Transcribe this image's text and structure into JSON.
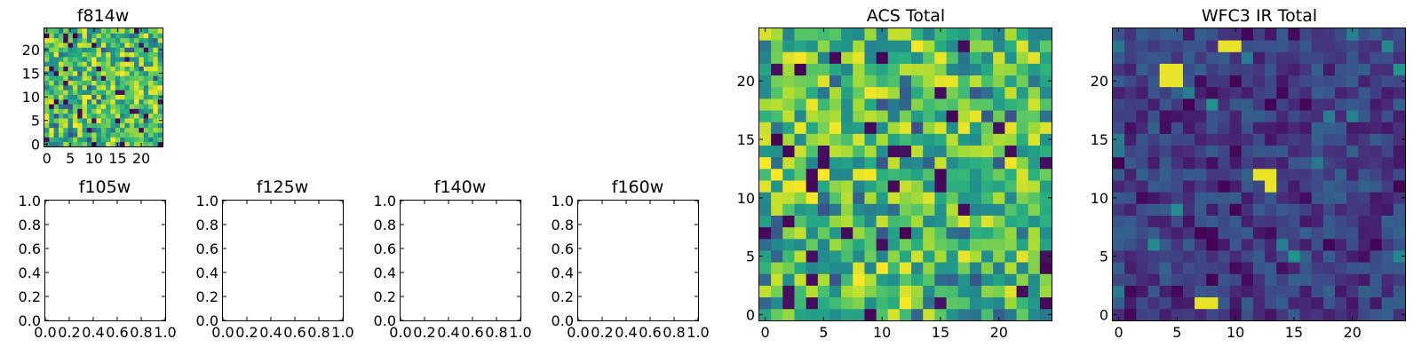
{
  "chart_data": [
    {
      "type": "heatmap",
      "title": "f814w",
      "xticks": [
        "0",
        "5",
        "10",
        "15",
        "20"
      ],
      "yticks": [
        "0",
        "5",
        "10",
        "15",
        "20"
      ],
      "xlim": [
        -0.5,
        24.5
      ],
      "ylim": [
        -0.5,
        24.5
      ],
      "grid_size": 25,
      "colormap": "viridis",
      "seed": 11,
      "value_range": [
        0,
        1
      ]
    },
    {
      "type": "heatmap",
      "title": "f105w",
      "empty": true,
      "xticks": [
        "0.0",
        "0.2",
        "0.4",
        "0.6",
        "0.8",
        "1.0"
      ],
      "yticks": [
        "0.0",
        "0.2",
        "0.4",
        "0.6",
        "0.8",
        "1.0"
      ],
      "xlim": [
        0,
        1
      ],
      "ylim": [
        0,
        1
      ]
    },
    {
      "type": "heatmap",
      "title": "f125w",
      "empty": true,
      "xticks": [
        "0.0",
        "0.2",
        "0.4",
        "0.6",
        "0.8",
        "1.0"
      ],
      "yticks": [
        "0.0",
        "0.2",
        "0.4",
        "0.6",
        "0.8",
        "1.0"
      ],
      "xlim": [
        0,
        1
      ],
      "ylim": [
        0,
        1
      ]
    },
    {
      "type": "heatmap",
      "title": "f140w",
      "empty": true,
      "xticks": [
        "0.0",
        "0.2",
        "0.4",
        "0.6",
        "0.8",
        "1.0"
      ],
      "yticks": [
        "0.0",
        "0.2",
        "0.4",
        "0.6",
        "0.8",
        "1.0"
      ],
      "xlim": [
        0,
        1
      ],
      "ylim": [
        0,
        1
      ]
    },
    {
      "type": "heatmap",
      "title": "f160w",
      "empty": true,
      "xticks": [
        "0.0",
        "0.2",
        "0.4",
        "0.6",
        "0.8",
        "1.0"
      ],
      "yticks": [
        "0.0",
        "0.2",
        "0.4",
        "0.6",
        "0.8",
        "1.0"
      ],
      "xlim": [
        0,
        1
      ],
      "ylim": [
        0,
        1
      ]
    },
    {
      "type": "heatmap",
      "title": "ACS Total",
      "xticks": [
        "0",
        "5",
        "10",
        "15",
        "20"
      ],
      "yticks": [
        "0",
        "5",
        "10",
        "15",
        "20"
      ],
      "xlim": [
        -0.5,
        24.5
      ],
      "ylim": [
        -0.5,
        24.5
      ],
      "grid_size": 25,
      "colormap": "viridis",
      "seed": 23,
      "value_range": [
        0,
        1
      ]
    },
    {
      "type": "heatmap",
      "title": "WFC3 IR Total",
      "xticks": [
        "0",
        "5",
        "10",
        "15",
        "20"
      ],
      "yticks": [
        "0",
        "5",
        "10",
        "15",
        "20"
      ],
      "xlim": [
        -0.5,
        24.5
      ],
      "ylim": [
        -0.5,
        24.5
      ],
      "grid_size": 25,
      "colormap": "viridis",
      "seed": 37,
      "value_range": [
        0,
        1
      ],
      "bright_spots": [
        {
          "x": 4,
          "y": 20
        },
        {
          "x": 5,
          "y": 21
        },
        {
          "x": 4,
          "y": 21
        },
        {
          "x": 5,
          "y": 20
        },
        {
          "x": 9,
          "y": 23
        },
        {
          "x": 10,
          "y": 23
        },
        {
          "x": 12,
          "y": 12
        },
        {
          "x": 13,
          "y": 12
        },
        {
          "x": 13,
          "y": 11
        },
        {
          "x": 7,
          "y": 1
        },
        {
          "x": 8,
          "y": 1
        }
      ]
    }
  ]
}
